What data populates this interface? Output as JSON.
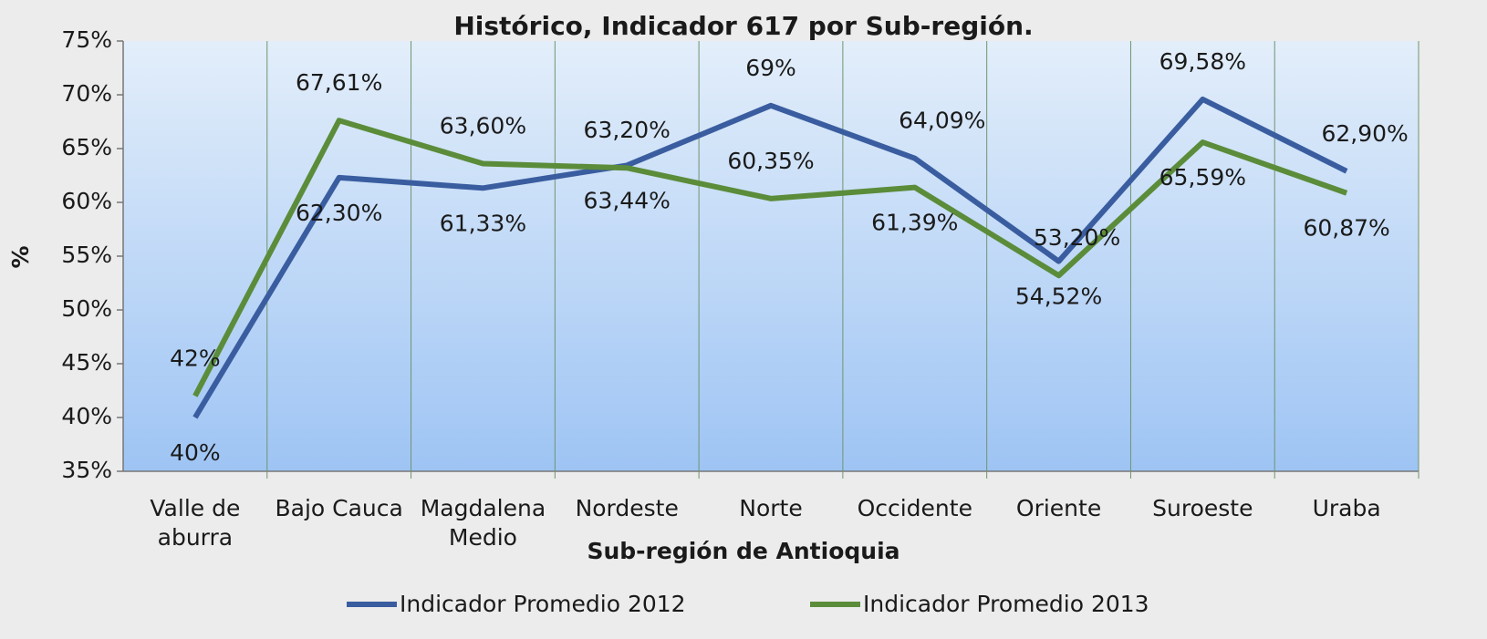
{
  "chart_data": {
    "type": "line",
    "title": "Histórico, Indicador 617 por Sub-región.",
    "x_label": "Sub-región de Antioquia",
    "y_label": "%",
    "categories": [
      "Valle de aburra",
      "Bajo Cauca",
      "Magdalena Medio",
      "Nordeste",
      "Norte",
      "Occidente",
      "Oriente",
      "Suroeste",
      "Uraba"
    ],
    "series": [
      {
        "name": "Indicador Promedio 2012",
        "color": "#3a5da0",
        "values": [
          40,
          62.3,
          61.33,
          63.44,
          69,
          64.09,
          54.52,
          69.58,
          62.9
        ],
        "value_labels": [
          "40%",
          "62,30%",
          "61,33%",
          "63,44%",
          "69%",
          "64,09%",
          "54,52%",
          "69,58%",
          "62,90%"
        ]
      },
      {
        "name": "Indicador Promedio 2013",
        "color": "#5b8c3a",
        "values": [
          42,
          67.61,
          63.6,
          63.2,
          60.35,
          61.39,
          53.2,
          65.59,
          60.87
        ],
        "value_labels": [
          "42%",
          "67,61%",
          "63,60%",
          "63,20%",
          "60,35%",
          "61,39%",
          "53,20%",
          "65,59%",
          "60,87%"
        ]
      }
    ],
    "ylim": [
      35,
      75
    ],
    "yticks": [
      {
        "value": 35,
        "label": "35%"
      },
      {
        "value": 40,
        "label": "40%"
      },
      {
        "value": 45,
        "label": "45%"
      },
      {
        "value": 50,
        "label": "50%"
      },
      {
        "value": 55,
        "label": "55%"
      },
      {
        "value": 60,
        "label": "60%"
      },
      {
        "value": 65,
        "label": "65%"
      },
      {
        "value": 70,
        "label": "70%"
      },
      {
        "value": 75,
        "label": "75%"
      }
    ],
    "grid": false,
    "legend": "bottom"
  }
}
